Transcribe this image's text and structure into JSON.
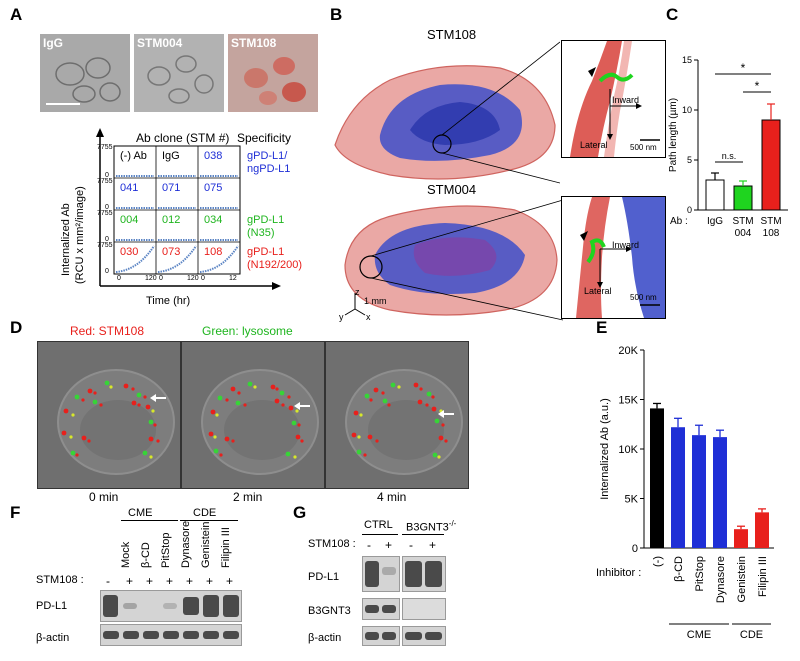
{
  "panels": {
    "A": "A",
    "B": "B",
    "C": "C",
    "D": "D",
    "E": "E",
    "F": "F",
    "G": "G"
  },
  "colors": {
    "red": "#e8201c",
    "green": "#1fd41f",
    "blue": "#1f2fd6",
    "black": "#000000",
    "white": "#ffffff"
  },
  "panel_a": {
    "image_labels": [
      "IgG",
      "STM004",
      "STM108"
    ],
    "header_clone": "Ab clone (STM #)",
    "header_specificity": "Specificity",
    "y_label_line1": "Internalized Ab",
    "y_label_line2": "(RCU x mm²/image)",
    "x_label": "Time (hr)",
    "tick_y_top": "7755",
    "tick_y_zero": "0",
    "tick_x": [
      "0",
      "120",
      "0",
      "120",
      "0",
      "12"
    ],
    "grid_rows": [
      {
        "cells": [
          "(-) Ab",
          "IgG",
          "038"
        ],
        "colors": [
          "#000000",
          "#000000",
          "#1f2fd6"
        ],
        "spec": [
          "gPD-L1/",
          "ngPD-L1"
        ],
        "spec_colors": [
          "#1f2fd6",
          "#1f2fd6"
        ]
      },
      {
        "cells": [
          "041",
          "071",
          "075"
        ],
        "colors": [
          "#1f2fd6",
          "#1f2fd6",
          "#1f2fd6"
        ],
        "spec": [],
        "spec_colors": []
      },
      {
        "cells": [
          "004",
          "012",
          "034"
        ],
        "colors": [
          "#1fb51f",
          "#1fb51f",
          "#1fb51f"
        ],
        "spec": [
          "gPD-L1",
          "(N35)"
        ],
        "spec_colors": [
          "#1fb51f",
          "#1fb51f"
        ]
      },
      {
        "cells": [
          "030",
          "073",
          "108"
        ],
        "colors": [
          "#e8201c",
          "#e8201c",
          "#e8201c"
        ],
        "spec": [
          "gPD-L1",
          "(N192/200)"
        ],
        "spec_colors": [
          "#e8201c",
          "#e8201c"
        ]
      }
    ]
  },
  "panel_b": {
    "title_top": "STM108",
    "title_bottom": "STM004",
    "inward": "Inward",
    "lateral": "Lateral",
    "scale": "500 nm",
    "axis_z": "z",
    "axis_y": "y",
    "axis_x": "x",
    "axis_scale": "1 mm"
  },
  "panel_c": {
    "y_label": "Path length (µm)",
    "ab_label": "Ab :",
    "ns": "n.s.",
    "star": "*",
    "y_ticks": [
      "0",
      "5",
      "10",
      "15"
    ],
    "x_labels": [
      [
        "IgG"
      ],
      [
        "STM",
        "004"
      ],
      [
        "STM",
        "108"
      ]
    ]
  },
  "panel_d": {
    "legend_red": "Red: STM108",
    "legend_green": "Green: lysosome",
    "times": [
      "0 min",
      "2 min",
      "4 min"
    ]
  },
  "panel_e": {
    "y_label": "Internalized Ab (a.u.)",
    "inhibitor_label": "Inhibitor :",
    "y_ticks": [
      "0",
      "5K",
      "10K",
      "15K",
      "20K"
    ],
    "group_cme": "CME",
    "group_cde": "CDE"
  },
  "panel_f": {
    "group_cme": "CME",
    "group_cde": "CDE",
    "lanes": [
      "Mock",
      "β-CD",
      "PitStop",
      "Dynasore",
      "Genistein",
      "Filipin III"
    ],
    "stm_label": "STM108 :",
    "stm_signs": [
      "-",
      "+",
      "+",
      "+",
      "+",
      "+",
      "+"
    ],
    "rows": [
      "PD-L1",
      "β-actin"
    ]
  },
  "panel_g": {
    "ctrl": "CTRL",
    "ko": "B3GNT3",
    "ko_sup": "-/-",
    "stm_label": "STM108 :",
    "stm_signs": [
      "-",
      "+",
      "-",
      "+"
    ],
    "rows": [
      "PD-L1",
      "B3GNT3",
      "β-actin"
    ]
  },
  "chart_data": [
    {
      "type": "bar",
      "categories": [
        "IgG",
        "STM 004",
        "STM 108"
      ],
      "values": [
        3.0,
        2.4,
        9.0
      ],
      "errors": [
        0.7,
        0.5,
        1.6
      ],
      "ylabel": "Path length (µm)",
      "ylim": [
        0,
        15
      ],
      "colors": [
        "#ffffff",
        "#1fd41f",
        "#e8201c"
      ],
      "annotations": [
        "n.s.",
        "*",
        "*"
      ]
    },
    {
      "type": "bar",
      "categories": [
        "(-)",
        "β-CD",
        "PitStop",
        "Dynasore",
        "Genistein",
        "Filipin III"
      ],
      "values": [
        14100,
        12200,
        11400,
        11200,
        1900,
        3600
      ],
      "errors": [
        500,
        900,
        1000,
        700,
        300,
        350
      ],
      "ylabel": "Internalized Ab (a.u.)",
      "ylim": [
        0,
        20000
      ],
      "colors": [
        "#000000",
        "#1f2fd6",
        "#1f2fd6",
        "#1f2fd6",
        "#e8201c",
        "#e8201c"
      ]
    }
  ]
}
